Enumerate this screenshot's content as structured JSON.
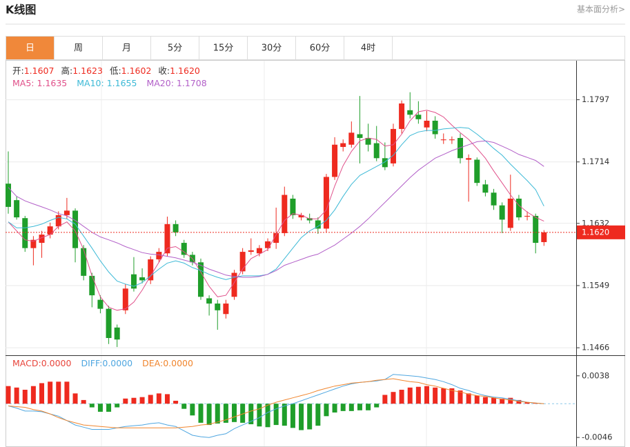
{
  "header": {
    "title": "K线图",
    "link": "基本面分析>"
  },
  "tabs": {
    "items": [
      "日",
      "周",
      "月",
      "5分",
      "15分",
      "30分",
      "60分",
      "4时"
    ],
    "active": 0
  },
  "chart_data": [
    {
      "type": "candlestick",
      "ohlc_legend": [
        {
          "label": "开:",
          "value": "1.1607"
        },
        {
          "label": "高:",
          "value": "1.1623"
        },
        {
          "label": "低:",
          "value": "1.1602"
        },
        {
          "label": "收:",
          "value": "1.1620"
        }
      ],
      "open": [
        1.1685,
        1.1663,
        1.1639,
        1.1599,
        1.1606,
        1.1617,
        1.1628,
        1.1643,
        1.1649,
        1.1599,
        1.1562,
        1.153,
        1.1518,
        1.1493,
        1.1516,
        1.1564,
        1.156,
        1.1556,
        1.1584,
        1.1592,
        1.1631,
        1.1606,
        1.159,
        1.158,
        1.1532,
        1.1525,
        1.1511,
        1.1534,
        1.1568,
        1.1594,
        1.1592,
        1.1599,
        1.1606,
        1.1619,
        1.1665,
        1.164,
        1.1639,
        1.1636,
        1.1625,
        1.1694,
        1.1734,
        1.1737,
        1.1751,
        1.1746,
        1.1739,
        1.1719,
        1.1712,
        1.1758,
        1.1783,
        1.1777,
        1.176,
        1.1769,
        1.1743,
        1.1743,
        1.1746,
        1.1717,
        1.1717,
        1.1684,
        1.1673,
        1.1656,
        1.1626,
        1.1665,
        1.1641,
        1.1642,
        1.1607
      ],
      "high": [
        1.1728,
        1.1668,
        1.1642,
        1.1615,
        1.1622,
        1.1633,
        1.1648,
        1.1666,
        1.1652,
        1.1603,
        1.1566,
        1.1536,
        1.1522,
        1.1497,
        1.1551,
        1.1587,
        1.1572,
        1.1588,
        1.1599,
        1.1641,
        1.1636,
        1.161,
        1.1594,
        1.1585,
        1.1536,
        1.153,
        1.153,
        1.157,
        1.1599,
        1.1612,
        1.1603,
        1.1612,
        1.1653,
        1.1681,
        1.167,
        1.1646,
        1.1645,
        1.164,
        1.1698,
        1.1747,
        1.1744,
        1.1768,
        1.1802,
        1.1765,
        1.1762,
        1.174,
        1.1765,
        1.1796,
        1.1807,
        1.1795,
        1.1782,
        1.1775,
        1.1752,
        1.1748,
        1.1752,
        1.1724,
        1.172,
        1.169,
        1.1678,
        1.166,
        1.1697,
        1.167,
        1.1648,
        1.1645,
        1.1623
      ],
      "low": [
        1.1645,
        1.1637,
        1.1594,
        1.1576,
        1.1586,
        1.1612,
        1.1624,
        1.1638,
        1.158,
        1.1556,
        1.152,
        1.1512,
        1.1471,
        1.1467,
        1.1511,
        1.1541,
        1.1552,
        1.1551,
        1.158,
        1.1588,
        1.1615,
        1.1586,
        1.1576,
        1.153,
        1.1509,
        1.149,
        1.1505,
        1.153,
        1.1564,
        1.159,
        1.1588,
        1.1595,
        1.1598,
        1.1615,
        1.1638,
        1.1636,
        1.1632,
        1.1618,
        1.162,
        1.169,
        1.1728,
        1.1733,
        1.1712,
        1.1728,
        1.1715,
        1.1703,
        1.1708,
        1.1752,
        1.1772,
        1.1765,
        1.1755,
        1.1745,
        1.1738,
        1.1738,
        1.1712,
        1.1661,
        1.1682,
        1.1668,
        1.165,
        1.1619,
        1.1622,
        1.1636,
        1.1636,
        1.1592,
        1.1602
      ],
      "close": [
        1.1654,
        1.164,
        1.1599,
        1.161,
        1.1617,
        1.1628,
        1.1643,
        1.1649,
        1.1599,
        1.1562,
        1.1536,
        1.1518,
        1.1479,
        1.1477,
        1.1545,
        1.1545,
        1.1556,
        1.1584,
        1.1594,
        1.1631,
        1.162,
        1.159,
        1.158,
        1.1534,
        1.1525,
        1.1516,
        1.1525,
        1.1566,
        1.1594,
        1.1596,
        1.1599,
        1.1608,
        1.1619,
        1.167,
        1.1643,
        1.1643,
        1.1636,
        1.1625,
        1.1694,
        1.1737,
        1.1739,
        1.1753,
        1.1746,
        1.1737,
        1.1719,
        1.1707,
        1.1758,
        1.1792,
        1.1777,
        1.1771,
        1.1769,
        1.1751,
        1.1744,
        1.1744,
        1.1719,
        1.1719,
        1.1686,
        1.1673,
        1.1656,
        1.1637,
        1.1665,
        1.164,
        1.1642,
        1.1606,
        1.162
      ],
      "up_color": "#ee2a1f",
      "down_color": "#1f9e2a",
      "series": [
        {
          "name": "MA5:",
          "legend_value": "1.1635",
          "color": "#e0508a",
          "values": [
            1.1634,
            1.1622,
            1.161,
            1.1608,
            1.1613,
            1.1617,
            1.1628,
            1.1634,
            1.1622,
            1.1597,
            1.1562,
            1.1534,
            1.152,
            1.1516,
            1.1518,
            1.1527,
            1.1543,
            1.1562,
            1.158,
            1.1599,
            1.1601,
            1.1594,
            1.1585,
            1.1567,
            1.1548,
            1.1534,
            1.1536,
            1.1553,
            1.1571,
            1.1585,
            1.1591,
            1.1597,
            1.1617,
            1.1636,
            1.1645,
            1.1643,
            1.1638,
            1.1638,
            1.165,
            1.1682,
            1.1709,
            1.1728,
            1.1742,
            1.1746,
            1.1744,
            1.1735,
            1.1737,
            1.1751,
            1.1769,
            1.1781,
            1.1783,
            1.178,
            1.1774,
            1.1763,
            1.1753,
            1.1744,
            1.1732,
            1.1719,
            1.1702,
            1.1686,
            1.167,
            1.1656,
            1.1647,
            1.164,
            1.1635
          ]
        },
        {
          "name": "MA10:",
          "legend_value": "1.1655",
          "color": "#3cb9d6",
          "values": [
            1.1634,
            1.1626,
            1.1626,
            1.1628,
            1.1631,
            1.1636,
            1.164,
            1.1638,
            1.1631,
            1.1615,
            1.1599,
            1.1582,
            1.1567,
            1.1555,
            1.1551,
            1.1548,
            1.1553,
            1.1562,
            1.1571,
            1.1579,
            1.1582,
            1.1579,
            1.1573,
            1.1569,
            1.1564,
            1.156,
            1.1557,
            1.156,
            1.1562,
            1.1562,
            1.1562,
            1.1564,
            1.1571,
            1.1585,
            1.1599,
            1.1613,
            1.1622,
            1.1628,
            1.1636,
            1.165,
            1.1668,
            1.1684,
            1.1696,
            1.1702,
            1.1708,
            1.1714,
            1.1723,
            1.1737,
            1.1749,
            1.1754,
            1.1756,
            1.1756,
            1.1758,
            1.1759,
            1.176,
            1.1759,
            1.1751,
            1.1742,
            1.1732,
            1.1723,
            1.1711,
            1.17,
            1.1689,
            1.1677,
            1.1655
          ]
        },
        {
          "name": "MA20:",
          "legend_value": "1.1708",
          "color": "#b25fc8",
          "values": [
            1.168,
            1.1668,
            1.1662,
            1.1658,
            1.1654,
            1.165,
            1.1645,
            1.1642,
            1.1636,
            1.1628,
            1.162,
            1.1614,
            1.161,
            1.1606,
            1.1601,
            1.1597,
            1.1593,
            1.1591,
            1.159,
            1.1588,
            1.1586,
            1.1583,
            1.158,
            1.1576,
            1.1571,
            1.1567,
            1.1563,
            1.1561,
            1.156,
            1.156,
            1.1561,
            1.1564,
            1.1569,
            1.1576,
            1.158,
            1.1584,
            1.1588,
            1.1591,
            1.1597,
            1.1603,
            1.1611,
            1.1619,
            1.1628,
            1.1638,
            1.1649,
            1.166,
            1.1671,
            1.1682,
            1.1693,
            1.1703,
            1.1711,
            1.1719,
            1.1724,
            1.1729,
            1.1733,
            1.1737,
            1.1741,
            1.1742,
            1.174,
            1.1735,
            1.173,
            1.1724,
            1.172,
            1.1716,
            1.1708
          ]
        }
      ],
      "ylim": [
        1.1456,
        1.185
      ],
      "yticks": [
        1.1466,
        1.1549,
        1.1632,
        1.1714,
        1.1797
      ],
      "last_price": {
        "value": 1.162,
        "label": "1.1620"
      },
      "grid": true
    },
    {
      "type": "macd",
      "histogram": {
        "name": "MACD:",
        "legend_value": "0.0000",
        "color": "#e8453c",
        "values": [
          0.0024,
          0.0022,
          0.0019,
          0.0024,
          0.0028,
          0.003,
          0.003,
          0.003,
          0.0014,
          0.0005,
          -0.0005,
          -0.0011,
          -0.0011,
          -0.0005,
          0.0007,
          0.0008,
          0.0009,
          0.0012,
          0.0014,
          0.0013,
          0.0004,
          -0.0007,
          -0.0016,
          -0.0026,
          -0.0029,
          -0.0027,
          -0.0026,
          -0.0025,
          -0.0026,
          -0.0028,
          -0.0031,
          -0.0032,
          -0.0029,
          -0.003,
          -0.0033,
          -0.0036,
          -0.0035,
          -0.003,
          -0.0017,
          -0.0012,
          -0.001,
          -0.001,
          -0.0009,
          -0.0009,
          -0.0005,
          0.0012,
          0.0016,
          0.0019,
          0.0022,
          0.0023,
          0.0024,
          0.0022,
          0.0021,
          0.0021,
          0.0018,
          0.0014,
          0.0011,
          0.0009,
          0.0008,
          0.0007,
          0.0008,
          0.0005,
          0.0002,
          0.0001,
          0.0
        ]
      },
      "up_color": "#ee2a1f",
      "down_color": "#1f9e2a",
      "series": [
        {
          "name": "DIFF:",
          "legend_value": "0.0000",
          "color": "#4ea6e0",
          "values": [
            -0.0003,
            -0.0006,
            -0.001,
            -0.001,
            -0.0011,
            -0.0014,
            -0.0017,
            -0.0023,
            -0.0029,
            -0.0032,
            -0.0035,
            -0.0035,
            -0.0035,
            -0.0033,
            -0.0031,
            -0.003,
            -0.0029,
            -0.0027,
            -0.0026,
            -0.0029,
            -0.0031,
            -0.0037,
            -0.0043,
            -0.0045,
            -0.0046,
            -0.0043,
            -0.0041,
            -0.0034,
            -0.0029,
            -0.0024,
            -0.0019,
            -0.0012,
            -0.0007,
            -0.0003,
            0.0,
            0.0004,
            0.0008,
            0.0012,
            0.0016,
            0.002,
            0.0024,
            0.0027,
            0.0029,
            0.003,
            0.0031,
            0.0033,
            0.004,
            0.0039,
            0.0038,
            0.0037,
            0.0035,
            0.0033,
            0.003,
            0.0026,
            0.0021,
            0.0018,
            0.0014,
            0.0011,
            0.0009,
            0.0008,
            0.0006,
            0.0004,
            0.0002,
            0.0001,
            0.0
          ]
        },
        {
          "name": "DEA:",
          "legend_value": "0.0000",
          "color": "#f0852d",
          "values": [
            -0.0003,
            -0.0004,
            -0.0005,
            -0.0008,
            -0.001,
            -0.0014,
            -0.0019,
            -0.0023,
            -0.0026,
            -0.0029,
            -0.003,
            -0.0031,
            -0.0032,
            -0.0033,
            -0.0033,
            -0.0033,
            -0.0033,
            -0.0033,
            -0.0033,
            -0.0033,
            -0.0033,
            -0.0032,
            -0.0031,
            -0.0029,
            -0.0028,
            -0.0025,
            -0.0022,
            -0.0018,
            -0.0014,
            -0.001,
            -0.0007,
            -0.0002,
            0.0002,
            0.0005,
            0.0008,
            0.0011,
            0.0014,
            0.0018,
            0.0021,
            0.0024,
            0.0026,
            0.0028,
            0.0029,
            0.003,
            0.0032,
            0.0033,
            0.0034,
            0.0032,
            0.003,
            0.0029,
            0.0026,
            0.0024,
            0.0021,
            0.0018,
            0.0016,
            0.0013,
            0.0011,
            0.001,
            0.0008,
            0.0006,
            0.0005,
            0.0003,
            0.0002,
            0.0001,
            0.0
          ]
        }
      ],
      "ylim": [
        -0.0059,
        0.0066
      ],
      "yticks": [
        -0.0046,
        0.0038
      ]
    }
  ]
}
